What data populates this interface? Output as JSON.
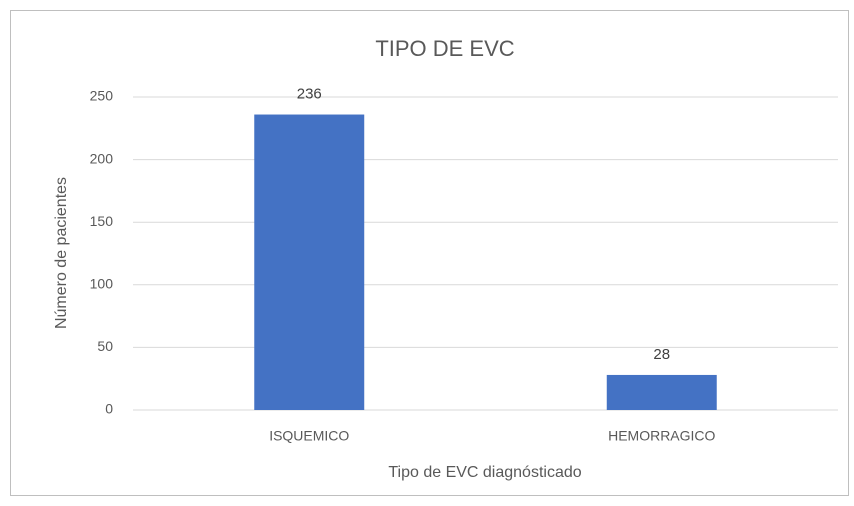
{
  "chart_data": {
    "type": "bar",
    "title": "TIPO DE EVC",
    "x_label": "Tipo de EVC diagnósticado",
    "y_label": "Número de pacientes",
    "categories": [
      "ISQUEMICO",
      "HEMORRAGICO"
    ],
    "values": [
      236,
      28
    ],
    "color": "#4472c4",
    "ylim": [
      0,
      250
    ],
    "yticks": [
      0,
      50,
      100,
      150,
      200,
      250
    ],
    "grid": true
  }
}
